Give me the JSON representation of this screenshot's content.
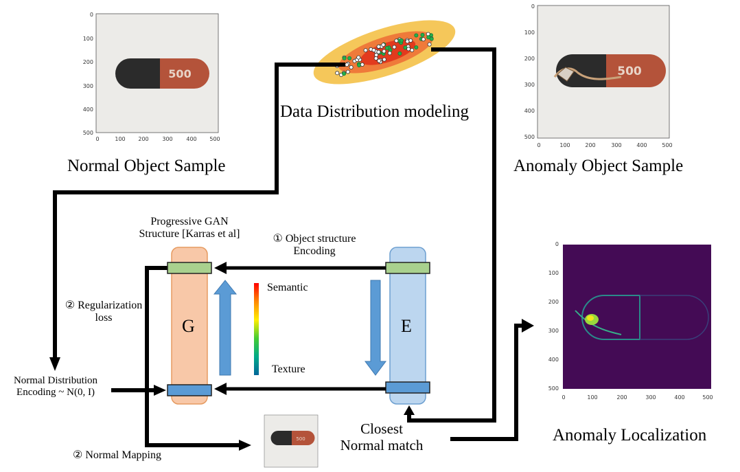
{
  "labels": {
    "normal_sample": "Normal Object Sample",
    "anomaly_sample": "Anomaly Object Sample",
    "data_distribution": "Data Distribution modeling",
    "progressive_gan_1": "Progressive GAN",
    "progressive_gan_2": "Structure [Karras et al]",
    "object_structure_1": "① Object structure",
    "object_structure_2": "Encoding",
    "regularization_1": "② Regularization",
    "regularization_2": "loss",
    "semantic": "Semantic",
    "texture": "Texture",
    "generator": "G",
    "encoder": "E",
    "normal_dist_1": "Normal  Distribution",
    "normal_dist_2": "Encoding ~ N(0, I)",
    "closest_1": "Closest",
    "closest_2": "Normal match",
    "normal_mapping": "② Normal Mapping",
    "anomaly_localization": "Anomaly Localization"
  },
  "pill_text": "500",
  "axes": {
    "ticks": [
      "0",
      "100",
      "200",
      "300",
      "400",
      "500"
    ]
  },
  "colors": {
    "generator_fill": "#f8c8a8",
    "generator_stroke": "#e59a60",
    "encoder_fill": "#bcd6ef",
    "encoder_stroke": "#6d9fd0",
    "green_bar": "#a9d18e",
    "blue_bar": "#5b9bd5",
    "arrow_blue": "#5b9bd5",
    "heatmap_bg": "#440b55"
  }
}
